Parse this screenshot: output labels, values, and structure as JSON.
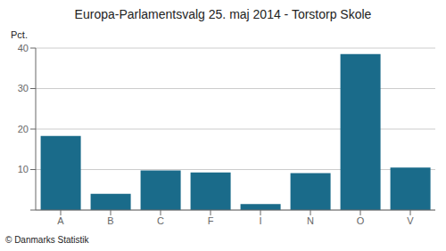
{
  "chart_data": {
    "type": "bar",
    "title": "Europa-Parlamentsvalg 25. maj 2014 - Torstorp Skole",
    "ylabel": "Pct.",
    "footer": "© Danmarks Statistik",
    "categories": [
      "A",
      "B",
      "C",
      "F",
      "I",
      "N",
      "O",
      "V"
    ],
    "values": [
      18.3,
      4.0,
      9.8,
      9.3,
      1.5,
      9.1,
      38.5,
      10.5
    ],
    "color": "#1a6b8a",
    "ylim": [
      0,
      40
    ],
    "yticks": [
      {
        "value": 0,
        "label": ""
      },
      10,
      20,
      30,
      40
    ],
    "grid": true
  }
}
